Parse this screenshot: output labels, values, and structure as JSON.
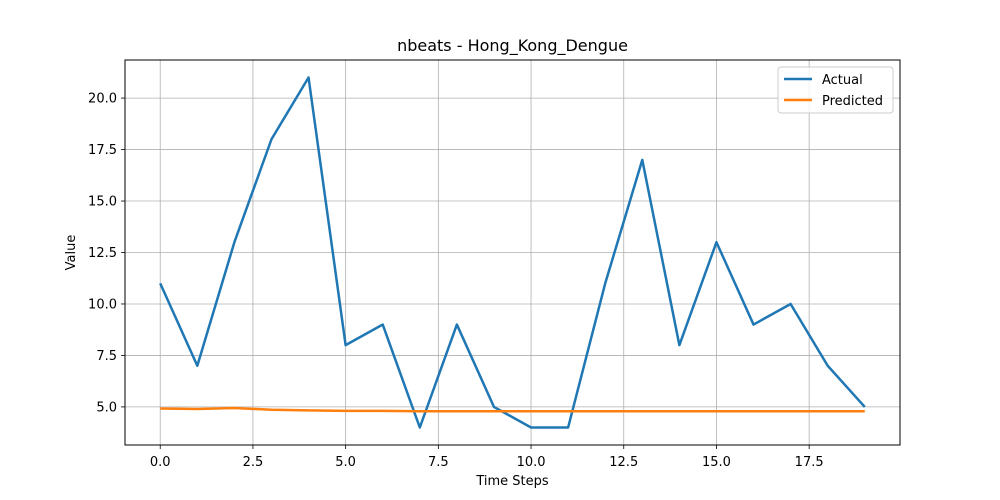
{
  "chart_data": {
    "type": "line",
    "title": "nbeats - Hong_Kong_Dengue",
    "xlabel": "Time Steps",
    "ylabel": "Value",
    "x": [
      0,
      1,
      2,
      3,
      4,
      5,
      6,
      7,
      8,
      9,
      10,
      11,
      12,
      13,
      14,
      15,
      16,
      17,
      18,
      19
    ],
    "xlim": [
      -0.95,
      19.95
    ],
    "ylim": [
      3.15,
      21.85
    ],
    "xticks": [
      0.0,
      2.5,
      5.0,
      7.5,
      10.0,
      12.5,
      15.0,
      17.5
    ],
    "xtick_labels": [
      "0.0",
      "2.5",
      "5.0",
      "7.5",
      "10.0",
      "12.5",
      "15.0",
      "17.5"
    ],
    "yticks": [
      5.0,
      7.5,
      10.0,
      12.5,
      15.0,
      17.5,
      20.0
    ],
    "ytick_labels": [
      "5.0",
      "7.5",
      "10.0",
      "12.5",
      "15.0",
      "17.5",
      "20.0"
    ],
    "grid": true,
    "legend_position": "top-right",
    "series": [
      {
        "name": "Actual",
        "color": "#1f77b4",
        "values": [
          11,
          7,
          13,
          18,
          21,
          8,
          9,
          4,
          9,
          5,
          4,
          4,
          11,
          17,
          8,
          13,
          9,
          10,
          7,
          5
        ]
      },
      {
        "name": "Predicted",
        "color": "#ff7f0e",
        "values": [
          4.92,
          4.9,
          4.95,
          4.86,
          4.83,
          4.81,
          4.81,
          4.79,
          4.79,
          4.79,
          4.79,
          4.79,
          4.79,
          4.79,
          4.79,
          4.79,
          4.79,
          4.79,
          4.79,
          4.79
        ]
      }
    ]
  }
}
